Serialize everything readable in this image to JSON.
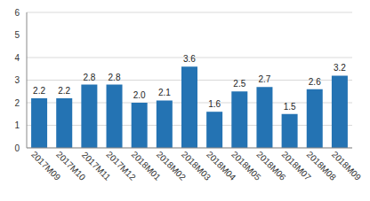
{
  "chart_data": {
    "type": "bar",
    "categories": [
      "2017M09",
      "2017M10",
      "2017M11",
      "2017M12",
      "2018M01",
      "2018M02",
      "2018M03",
      "2018M04",
      "2018M05",
      "2018M06",
      "2018M07",
      "2018M08",
      "2018M09"
    ],
    "values": [
      2.2,
      2.2,
      2.8,
      2.8,
      2.0,
      2.1,
      3.6,
      1.6,
      2.5,
      2.7,
      1.5,
      2.6,
      3.2
    ],
    "value_labels": [
      "2.2",
      "2.2",
      "2.8",
      "2.8",
      "2.0",
      "2.1",
      "3.6",
      "1.6",
      "2.5",
      "2.7",
      "1.5",
      "2.6",
      "3.2"
    ],
    "color": "#2473b3",
    "ylim": [
      0,
      6
    ],
    "yticks": [
      0,
      1,
      2,
      3,
      4,
      5,
      6
    ],
    "grid": true,
    "data_labels": true
  }
}
